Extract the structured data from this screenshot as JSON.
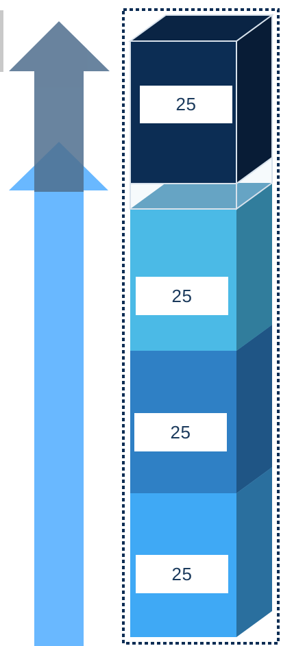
{
  "stack": {
    "blocks": [
      {
        "label": "25",
        "front": "#3fa9f5",
        "side": "#2a6f9e",
        "top": "#56b9f7"
      },
      {
        "label": "25",
        "front": "#2f80c5",
        "side": "#1f5585",
        "top": "#3a8fd0"
      },
      {
        "label": "25",
        "front": "#4bbae6",
        "side": "#317d9c",
        "top": "#3f8db5"
      },
      {
        "label": "25",
        "front": "#0c2d54",
        "side": "#081c36",
        "top": "#0a2444"
      }
    ]
  },
  "colors": {
    "light_arrow": "#69b8ff",
    "dark_arrow": "#4f6e8e",
    "dashed_border": "#0c2d54"
  }
}
